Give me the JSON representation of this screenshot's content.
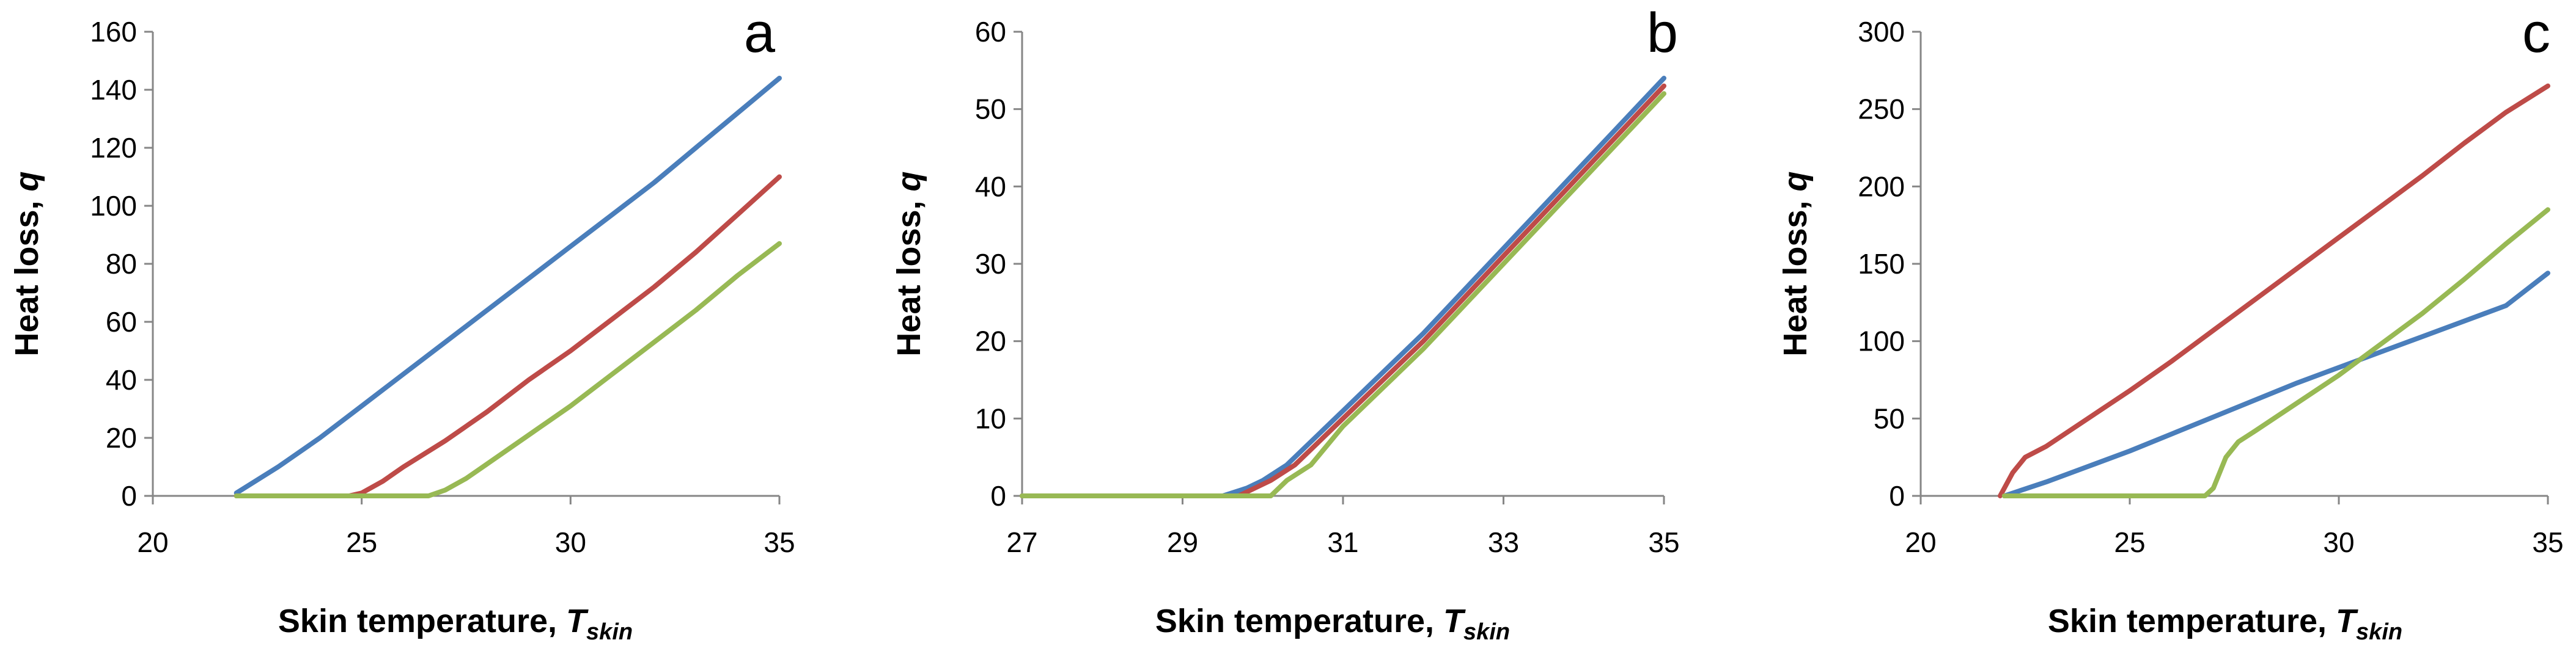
{
  "chart_data": [
    {
      "type": "line",
      "panel_label": "a",
      "xlabel": "Skin temperature, ",
      "xlabel_sub": "T",
      "xlabel_subscript": "skin",
      "ylabel": "Heat loss, ",
      "ylabel_var": "q",
      "xlim": [
        20,
        35
      ],
      "ylim": [
        0,
        160
      ],
      "xticks": [
        "20",
        "25",
        "30",
        "35"
      ],
      "yticks": [
        "0",
        "20",
        "40",
        "60",
        "80",
        "100",
        "120",
        "140",
        "160"
      ],
      "grid": false,
      "legend": false,
      "series": [
        {
          "color": "#4a7ebb",
          "x": [
            22,
            23,
            24,
            25,
            26,
            27,
            28,
            29,
            30,
            31,
            32,
            33,
            34,
            35
          ],
          "y": [
            1,
            10,
            20,
            31,
            42,
            53,
            64,
            75,
            86,
            97,
            108,
            120,
            132,
            144
          ]
        },
        {
          "color": "#be4b48",
          "x": [
            22,
            23,
            24,
            24.7,
            25,
            25.5,
            26,
            27,
            28,
            29,
            30,
            31,
            32,
            33,
            34,
            35
          ],
          "y": [
            0,
            0,
            0,
            0,
            1,
            5,
            10,
            19,
            29,
            40,
            50,
            61,
            72,
            84,
            97,
            110
          ]
        },
        {
          "color": "#98b954",
          "x": [
            22,
            23,
            24,
            25,
            26,
            26.6,
            27,
            27.5,
            28,
            29,
            30,
            31,
            32,
            33,
            34,
            35
          ],
          "y": [
            0,
            0,
            0,
            0,
            0,
            0,
            2,
            6,
            11,
            21,
            31,
            42,
            53,
            64,
            76,
            87
          ]
        }
      ]
    },
    {
      "type": "line",
      "panel_label": "b",
      "xlabel": "Skin temperature, ",
      "xlabel_sub": "T",
      "xlabel_subscript": "skin",
      "ylabel": "Heat loss, ",
      "ylabel_var": "q",
      "xlim": [
        27,
        35
      ],
      "ylim": [
        0,
        60
      ],
      "xticks": [
        "27",
        "29",
        "31",
        "33",
        "35"
      ],
      "yticks": [
        "0",
        "10",
        "20",
        "30",
        "40",
        "50",
        "60"
      ],
      "grid": false,
      "legend": false,
      "series": [
        {
          "color": "#4a7ebb",
          "x": [
            27,
            28,
            29,
            29.5,
            29.8,
            30,
            30.3,
            31,
            32,
            33,
            34,
            35
          ],
          "y": [
            0,
            0,
            0,
            0,
            1,
            2,
            4,
            11,
            21,
            32,
            43,
            54
          ]
        },
        {
          "color": "#be4b48",
          "x": [
            27,
            28,
            29,
            29.7,
            29.9,
            30.1,
            30.4,
            31,
            32,
            33,
            34,
            35
          ],
          "y": [
            0,
            0,
            0,
            0,
            1,
            2,
            4,
            10,
            20,
            31,
            42,
            53
          ]
        },
        {
          "color": "#98b954",
          "x": [
            27,
            28,
            29,
            30,
            30.1,
            30.3,
            30.6,
            31,
            32,
            33,
            34,
            35
          ],
          "y": [
            0,
            0,
            0,
            0,
            0,
            2,
            4,
            9,
            19,
            30,
            41,
            52
          ]
        }
      ]
    },
    {
      "type": "line",
      "panel_label": "c",
      "xlabel": "Skin temperature, ",
      "xlabel_sub": "T",
      "xlabel_subscript": "skin",
      "ylabel": "Heat loss, ",
      "ylabel_var": "q",
      "xlim": [
        20,
        35
      ],
      "ylim": [
        0,
        300
      ],
      "xticks": [
        "20",
        "25",
        "30",
        "35"
      ],
      "yticks": [
        "0",
        "50",
        "100",
        "150",
        "200",
        "250",
        "300"
      ],
      "grid": false,
      "legend": false,
      "series": [
        {
          "color": "#4a7ebb",
          "x": [
            22,
            23,
            24,
            25,
            26,
            27,
            28,
            29,
            30,
            31,
            32,
            33,
            34,
            35
          ],
          "y": [
            0,
            9,
            19,
            29,
            40,
            51,
            62,
            73,
            83,
            93,
            103,
            113,
            123,
            144
          ]
        },
        {
          "color": "#be4b48",
          "x": [
            21.9,
            22.2,
            22.5,
            23,
            24,
            25,
            26,
            27,
            28,
            29,
            30,
            31,
            32,
            33,
            34,
            35
          ],
          "y": [
            0,
            15,
            25,
            32,
            50,
            68,
            87,
            107,
            127,
            147,
            167,
            187,
            207,
            228,
            248,
            265
          ]
        },
        {
          "color": "#98b954",
          "x": [
            22,
            23,
            24,
            25,
            26,
            26.8,
            27.0,
            27.3,
            27.6,
            28,
            29,
            30,
            31,
            32,
            33,
            34,
            35
          ],
          "y": [
            0,
            0,
            0,
            0,
            0,
            0,
            5,
            25,
            35,
            42,
            60,
            78,
            98,
            118,
            140,
            163,
            185
          ]
        }
      ]
    }
  ]
}
